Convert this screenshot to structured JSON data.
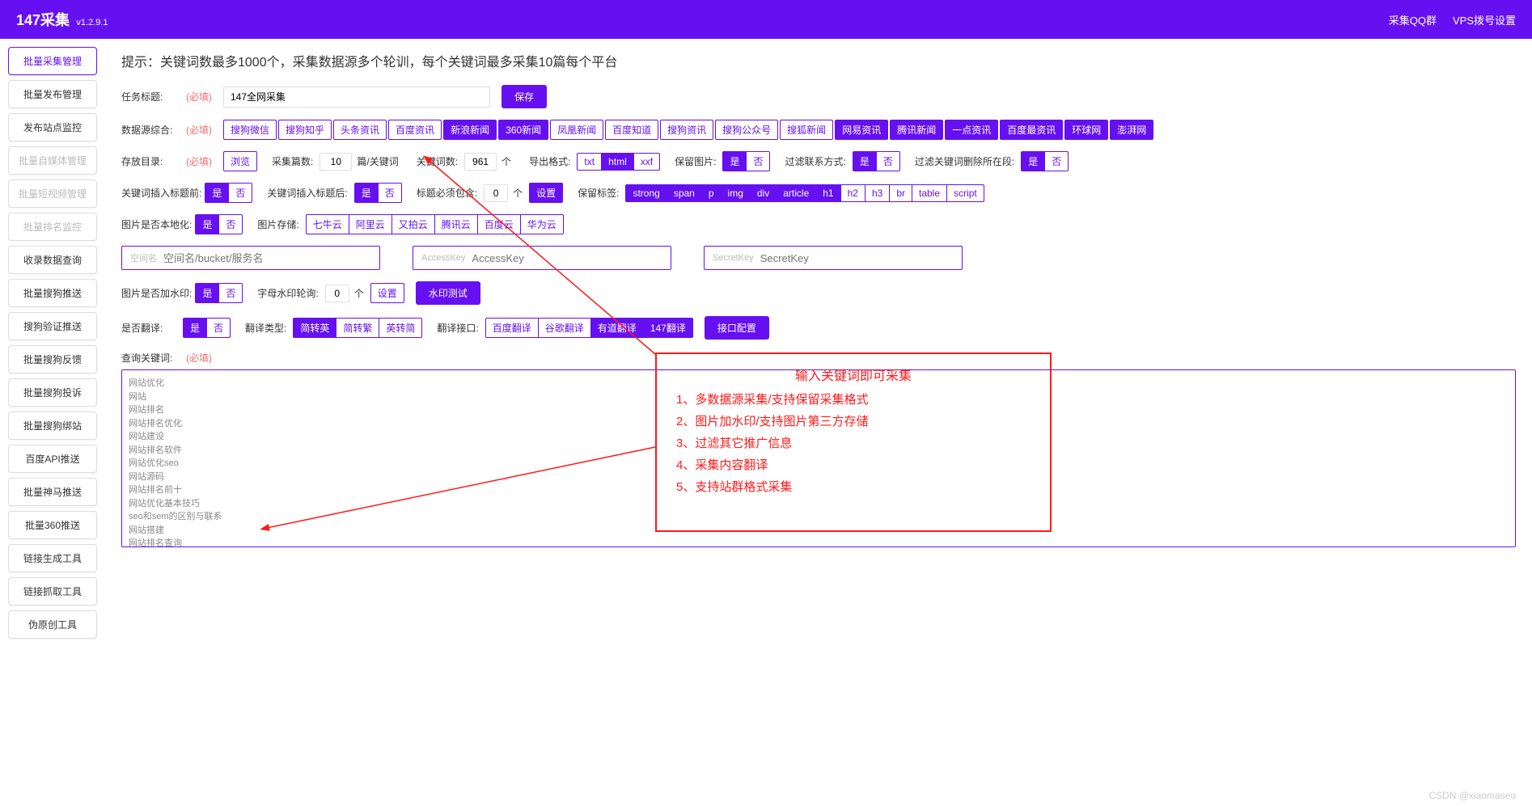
{
  "header": {
    "title": "147采集",
    "version": "v1.2.9.1",
    "links": [
      "采集QQ群",
      "VPS拨号设置"
    ]
  },
  "sidebar": [
    {
      "label": "批量采集管理",
      "active": true
    },
    {
      "label": "批量发布管理"
    },
    {
      "label": "发布站点监控"
    },
    {
      "label": "批量自媒体管理",
      "disabled": true
    },
    {
      "label": "批量短视频管理",
      "disabled": true
    },
    {
      "label": "批量排名监控",
      "disabled": true
    },
    {
      "label": "收录数据查询"
    },
    {
      "label": "批量搜狗推送"
    },
    {
      "label": "搜狗验证推送"
    },
    {
      "label": "批量搜狗反馈"
    },
    {
      "label": "批量搜狗投诉"
    },
    {
      "label": "批量搜狗绑站"
    },
    {
      "label": "百度API推送"
    },
    {
      "label": "批量神马推送"
    },
    {
      "label": "批量360推送"
    },
    {
      "label": "链接生成工具"
    },
    {
      "label": "链接抓取工具"
    },
    {
      "label": "伪原创工具"
    }
  ],
  "hint": "提示：关键词数最多1000个，采集数据源多个轮训，每个关键词最多采集10篇每个平台",
  "task": {
    "label": "任务标题:",
    "required": "(必填)",
    "value": "147全网采集",
    "save": "保存"
  },
  "sources": {
    "label": "数据源综合:",
    "required": "(必填)",
    "items": [
      {
        "t": "搜狗微信"
      },
      {
        "t": "搜狗知乎"
      },
      {
        "t": "头条资讯"
      },
      {
        "t": "百度资讯"
      },
      {
        "t": "新浪新闻",
        "f": true
      },
      {
        "t": "360新闻",
        "f": true
      },
      {
        "t": "凤凰新闻"
      },
      {
        "t": "百度知道"
      },
      {
        "t": "搜狗资讯"
      },
      {
        "t": "搜狗公众号"
      },
      {
        "t": "搜狐新闻"
      },
      {
        "t": "网易资讯",
        "f": true
      },
      {
        "t": "腾讯新闻",
        "f": true
      },
      {
        "t": "一点资讯",
        "f": true
      },
      {
        "t": "百度最资讯",
        "f": true
      },
      {
        "t": "环球网",
        "f": true
      },
      {
        "t": "澎湃网",
        "f": true
      }
    ]
  },
  "storage": {
    "label": "存放目录:",
    "required": "(必填)",
    "browse": "浏览",
    "countLabel": "采集篇数:",
    "countValue": "10",
    "countUnit": "篇/关键词",
    "kwLabel": "关键词数:",
    "kwValue": "961",
    "kwUnit": "个",
    "fmtLabel": "导出格式:",
    "fmts": [
      {
        "t": "txt"
      },
      {
        "t": "html",
        "f": true
      },
      {
        "t": "xxf"
      }
    ],
    "imgLabel": "保留图片:",
    "yn1": [
      {
        "t": "是",
        "f": true
      },
      {
        "t": "否"
      }
    ],
    "contactLabel": "过滤联系方式:",
    "yn2": [
      {
        "t": "是",
        "f": true
      },
      {
        "t": "否"
      }
    ],
    "delLabel": "过滤关键词删除所在段:",
    "yn3": [
      {
        "t": "是",
        "f": true
      },
      {
        "t": "否"
      }
    ]
  },
  "insert": {
    "beforeLabel": "关键词插入标题前:",
    "beforeYN": [
      {
        "t": "是",
        "f": true
      },
      {
        "t": "否"
      }
    ],
    "afterLabel": "关键词插入标题后:",
    "afterYN": [
      {
        "t": "是",
        "f": true
      },
      {
        "t": "否"
      }
    ],
    "mustLabel": "标题必须包含:",
    "mustValue": "0",
    "mustUnit": "个",
    "mustBtn": "设置",
    "tagLabel": "保留标签:",
    "tags": [
      {
        "t": "strong",
        "f": true
      },
      {
        "t": "span",
        "f": true
      },
      {
        "t": "p",
        "f": true
      },
      {
        "t": "img",
        "f": true
      },
      {
        "t": "div",
        "f": true
      },
      {
        "t": "article",
        "f": true
      },
      {
        "t": "h1",
        "f": true
      },
      {
        "t": "h2"
      },
      {
        "t": "h3"
      },
      {
        "t": "br"
      },
      {
        "t": "table"
      },
      {
        "t": "script"
      }
    ]
  },
  "localize": {
    "label": "图片是否本地化:",
    "yn": [
      {
        "t": "是",
        "f": true
      },
      {
        "t": "否"
      }
    ],
    "storeLabel": "图片存储:",
    "stores": [
      {
        "t": "七牛云"
      },
      {
        "t": "阿里云"
      },
      {
        "t": "又拍云"
      },
      {
        "t": "腾讯云"
      },
      {
        "t": "百度云"
      },
      {
        "t": "华为云"
      }
    ]
  },
  "cloud": {
    "space": {
      "prefix": "空间名",
      "ph": "空间名/bucket/服务名"
    },
    "ak": {
      "prefix": "AccessKey",
      "ph": "AccessKey"
    },
    "sk": {
      "prefix": "SecretKey",
      "ph": "SecretKey"
    }
  },
  "watermark": {
    "label": "图片是否加水印:",
    "yn": [
      {
        "t": "是",
        "f": true
      },
      {
        "t": "否"
      }
    ],
    "rotLabel": "字母水印轮询:",
    "rotValue": "0",
    "rotUnit": "个",
    "setBtn": "设置",
    "testBtn": "水印测试"
  },
  "translate": {
    "label": "是否翻译:",
    "yn": [
      {
        "t": "是",
        "f": true
      },
      {
        "t": "否"
      }
    ],
    "typeLabel": "翻译类型:",
    "types": [
      {
        "t": "简转英",
        "f": true
      },
      {
        "t": "简转繁"
      },
      {
        "t": "英转简"
      }
    ],
    "apiLabel": "翻译接口:",
    "apis": [
      {
        "t": "百度翻译"
      },
      {
        "t": "谷歌翻译"
      },
      {
        "t": "有道翻译",
        "f": true
      },
      {
        "t": "147翻译",
        "f": true
      }
    ],
    "cfgBtn": "接口配置"
  },
  "query": {
    "label": "查询关键词:",
    "required": "(必填)",
    "content": "网站优化\n网站\n网站排名\n网站排名优化\n网站建设\n网站排名软件\n网站优化seo\n网站源码\n网站排名前十\n网站优化基本技巧\nseo和sem的区别与联系\n网站搭建\n网站排名查询\n网站优化培训\nseo是什么意思"
  },
  "annotation": {
    "title": "输入关键词即可采集",
    "lines": [
      "1、多数据源采集/支持保留采集格式",
      "2、图片加水印/支持图片第三方存储",
      "3、过滤其它推广信息",
      "4、采集内容翻译",
      "5、支持站群格式采集"
    ]
  },
  "watermarkText": "CSDN @xiaomaseo"
}
